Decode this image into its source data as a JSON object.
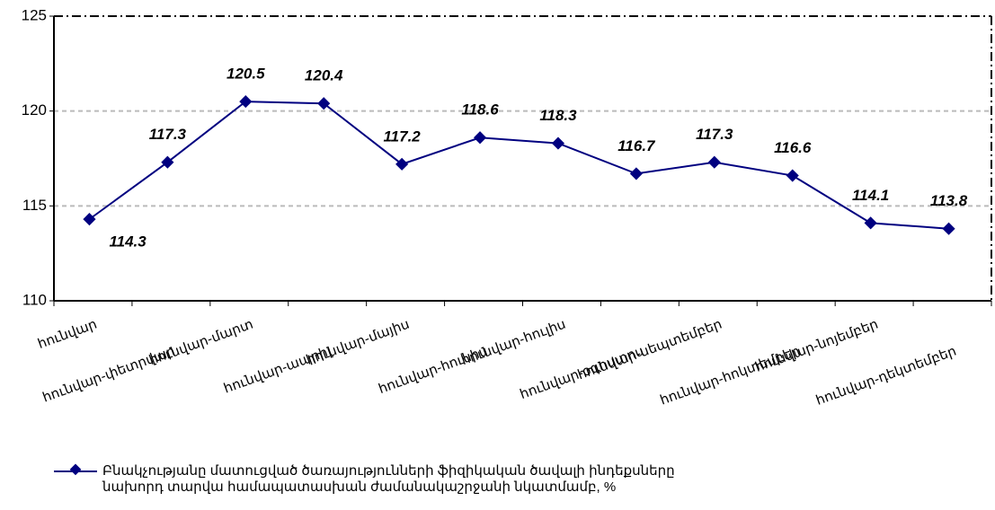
{
  "chart_data": {
    "type": "line",
    "categories": [
      "հունվար",
      "հունվար-փետրվար",
      "հունվար-մարտ",
      "հունվար-ապրիլ",
      "հունվար-մայիս",
      "հունվար-հունիս",
      "հունվար-հուլիս",
      "հունվար-օգոստոս",
      "հունվար-սեպտեմբեր",
      "հունվար-հոկտեմբեր",
      "հունվար-նոյեմբեր",
      "հունվար-դեկտեմբեր"
    ],
    "series": [
      {
        "name": "Բնակչությանը մատուցված ծառայությունների  ֆիզիկական ծավալի ինդեքսները\nնախորդ տարվա համապատասխան ժամանակաշրջանի նկատմամբ, %",
        "color": "#000080",
        "values": [
          114.3,
          117.3,
          120.5,
          120.4,
          117.2,
          118.6,
          118.3,
          116.7,
          117.3,
          116.6,
          114.1,
          113.8
        ]
      }
    ],
    "ylim": [
      110,
      125
    ],
    "yticks": [
      110,
      115,
      120,
      125
    ],
    "grid": true,
    "legend": "bottom"
  }
}
